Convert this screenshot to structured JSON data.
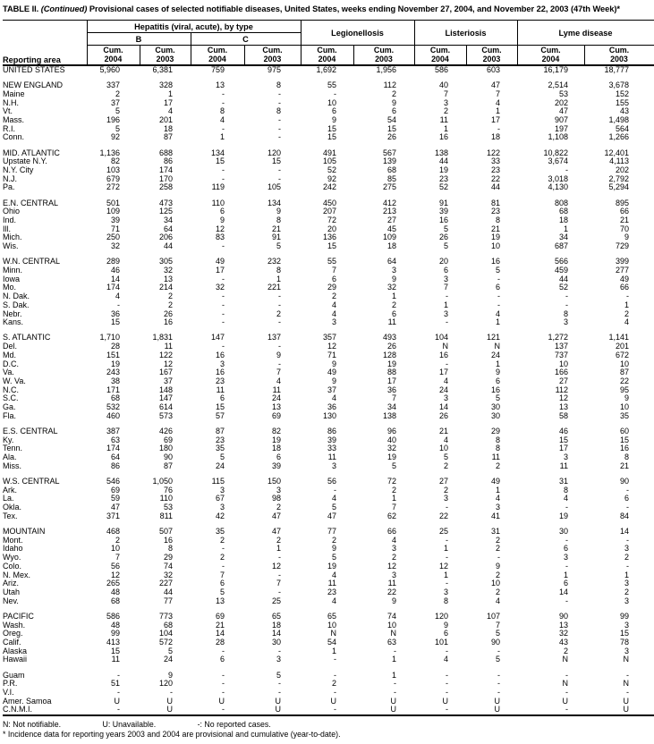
{
  "title": {
    "label": "TABLE II.",
    "continued": " (Continued)",
    "rest": " Provisional cases of selected notifiable diseases, United States, weeks ending November 27, 2004, and November 22, 2003 (47th Week)*"
  },
  "header": {
    "reporting_area": "Reporting area",
    "hepatitis_group": "Hepatitis (viral, acute), by type",
    "hepatitis_subgroups": [
      "B",
      "C"
    ],
    "disease_groups": [
      "Legionellosis",
      "Listeriosis",
      "Lyme disease"
    ],
    "column_label": "Cum.",
    "years": [
      "2004",
      "2003"
    ]
  },
  "sections": [
    {
      "rows": [
        [
          "UNITED STATES",
          "5,960",
          "6,381",
          "759",
          "975",
          "1,692",
          "1,956",
          "586",
          "603",
          "16,179",
          "18,777"
        ]
      ]
    },
    {
      "rows": [
        [
          "NEW ENGLAND",
          "337",
          "328",
          "13",
          "8",
          "55",
          "112",
          "40",
          "47",
          "2,514",
          "3,678"
        ],
        [
          "Maine",
          "2",
          "1",
          "-",
          "-",
          "-",
          "2",
          "7",
          "7",
          "53",
          "152"
        ],
        [
          "N.H.",
          "37",
          "17",
          "-",
          "-",
          "10",
          "9",
          "3",
          "4",
          "202",
          "155"
        ],
        [
          "Vt.",
          "5",
          "4",
          "8",
          "8",
          "6",
          "6",
          "2",
          "1",
          "47",
          "43"
        ],
        [
          "Mass.",
          "196",
          "201",
          "4",
          "-",
          "9",
          "54",
          "11",
          "17",
          "907",
          "1,498"
        ],
        [
          "R.I.",
          "5",
          "18",
          "-",
          "-",
          "15",
          "15",
          "1",
          "-",
          "197",
          "564"
        ],
        [
          "Conn.",
          "92",
          "87",
          "1",
          "-",
          "15",
          "26",
          "16",
          "18",
          "1,108",
          "1,266"
        ]
      ]
    },
    {
      "rows": [
        [
          "MID. ATLANTIC",
          "1,136",
          "688",
          "134",
          "120",
          "491",
          "567",
          "138",
          "122",
          "10,822",
          "12,401"
        ],
        [
          "Upstate N.Y.",
          "82",
          "86",
          "15",
          "15",
          "105",
          "139",
          "44",
          "33",
          "3,674",
          "4,113"
        ],
        [
          "N.Y. City",
          "103",
          "174",
          "-",
          "-",
          "52",
          "68",
          "19",
          "23",
          "-",
          "202"
        ],
        [
          "N.J.",
          "679",
          "170",
          "-",
          "-",
          "92",
          "85",
          "23",
          "22",
          "3,018",
          "2,792"
        ],
        [
          "Pa.",
          "272",
          "258",
          "119",
          "105",
          "242",
          "275",
          "52",
          "44",
          "4,130",
          "5,294"
        ]
      ]
    },
    {
      "rows": [
        [
          "E.N. CENTRAL",
          "501",
          "473",
          "110",
          "134",
          "450",
          "412",
          "91",
          "81",
          "808",
          "895"
        ],
        [
          "Ohio",
          "109",
          "125",
          "6",
          "9",
          "207",
          "213",
          "39",
          "23",
          "68",
          "66"
        ],
        [
          "Ind.",
          "39",
          "34",
          "9",
          "8",
          "72",
          "27",
          "16",
          "8",
          "18",
          "21"
        ],
        [
          "Ill.",
          "71",
          "64",
          "12",
          "21",
          "20",
          "45",
          "5",
          "21",
          "1",
          "70"
        ],
        [
          "Mich.",
          "250",
          "206",
          "83",
          "91",
          "136",
          "109",
          "26",
          "19",
          "34",
          "9"
        ],
        [
          "Wis.",
          "32",
          "44",
          "-",
          "5",
          "15",
          "18",
          "5",
          "10",
          "687",
          "729"
        ]
      ]
    },
    {
      "rows": [
        [
          "W.N. CENTRAL",
          "289",
          "305",
          "49",
          "232",
          "55",
          "64",
          "20",
          "16",
          "566",
          "399"
        ],
        [
          "Minn.",
          "46",
          "32",
          "17",
          "8",
          "7",
          "3",
          "6",
          "5",
          "459",
          "277"
        ],
        [
          "Iowa",
          "14",
          "13",
          "-",
          "1",
          "6",
          "9",
          "3",
          "-",
          "44",
          "49"
        ],
        [
          "Mo.",
          "174",
          "214",
          "32",
          "221",
          "29",
          "32",
          "7",
          "6",
          "52",
          "66"
        ],
        [
          "N. Dak.",
          "4",
          "2",
          "-",
          "-",
          "2",
          "1",
          "-",
          "-",
          "-",
          "-"
        ],
        [
          "S. Dak.",
          "-",
          "2",
          "-",
          "-",
          "4",
          "2",
          "1",
          "-",
          "-",
          "1"
        ],
        [
          "Nebr.",
          "36",
          "26",
          "-",
          "2",
          "4",
          "6",
          "3",
          "4",
          "8",
          "2"
        ],
        [
          "Kans.",
          "15",
          "16",
          "-",
          "-",
          "3",
          "11",
          "-",
          "1",
          "3",
          "4"
        ]
      ]
    },
    {
      "rows": [
        [
          "S. ATLANTIC",
          "1,710",
          "1,831",
          "147",
          "137",
          "357",
          "493",
          "104",
          "121",
          "1,272",
          "1,141"
        ],
        [
          "Del.",
          "28",
          "11",
          "-",
          "-",
          "12",
          "26",
          "N",
          "N",
          "137",
          "201"
        ],
        [
          "Md.",
          "151",
          "122",
          "16",
          "9",
          "71",
          "128",
          "16",
          "24",
          "737",
          "672"
        ],
        [
          "D.C.",
          "19",
          "12",
          "3",
          "-",
          "9",
          "19",
          "-",
          "1",
          "10",
          "10"
        ],
        [
          "Va.",
          "243",
          "167",
          "16",
          "7",
          "49",
          "88",
          "17",
          "9",
          "166",
          "87"
        ],
        [
          "W. Va.",
          "38",
          "37",
          "23",
          "4",
          "9",
          "17",
          "4",
          "6",
          "27",
          "22"
        ],
        [
          "N.C.",
          "171",
          "148",
          "11",
          "11",
          "37",
          "36",
          "24",
          "16",
          "112",
          "95"
        ],
        [
          "S.C.",
          "68",
          "147",
          "6",
          "24",
          "4",
          "7",
          "3",
          "5",
          "12",
          "9"
        ],
        [
          "Ga.",
          "532",
          "614",
          "15",
          "13",
          "36",
          "34",
          "14",
          "30",
          "13",
          "10"
        ],
        [
          "Fla.",
          "460",
          "573",
          "57",
          "69",
          "130",
          "138",
          "26",
          "30",
          "58",
          "35"
        ]
      ]
    },
    {
      "rows": [
        [
          "E.S. CENTRAL",
          "387",
          "426",
          "87",
          "82",
          "86",
          "96",
          "21",
          "29",
          "46",
          "60"
        ],
        [
          "Ky.",
          "63",
          "69",
          "23",
          "19",
          "39",
          "40",
          "4",
          "8",
          "15",
          "15"
        ],
        [
          "Tenn.",
          "174",
          "180",
          "35",
          "18",
          "33",
          "32",
          "10",
          "8",
          "17",
          "16"
        ],
        [
          "Ala.",
          "64",
          "90",
          "5",
          "6",
          "11",
          "19",
          "5",
          "11",
          "3",
          "8"
        ],
        [
          "Miss.",
          "86",
          "87",
          "24",
          "39",
          "3",
          "5",
          "2",
          "2",
          "11",
          "21"
        ]
      ]
    },
    {
      "rows": [
        [
          "W.S. CENTRAL",
          "546",
          "1,050",
          "115",
          "150",
          "56",
          "72",
          "27",
          "49",
          "31",
          "90"
        ],
        [
          "Ark.",
          "69",
          "76",
          "3",
          "3",
          "-",
          "2",
          "2",
          "1",
          "8",
          "-"
        ],
        [
          "La.",
          "59",
          "110",
          "67",
          "98",
          "4",
          "1",
          "3",
          "4",
          "4",
          "6"
        ],
        [
          "Okla.",
          "47",
          "53",
          "3",
          "2",
          "5",
          "7",
          "-",
          "3",
          "-",
          "-"
        ],
        [
          "Tex.",
          "371",
          "811",
          "42",
          "47",
          "47",
          "62",
          "22",
          "41",
          "19",
          "84"
        ]
      ]
    },
    {
      "rows": [
        [
          "MOUNTAIN",
          "468",
          "507",
          "35",
          "47",
          "77",
          "66",
          "25",
          "31",
          "30",
          "14"
        ],
        [
          "Mont.",
          "2",
          "16",
          "2",
          "2",
          "2",
          "4",
          "-",
          "2",
          "-",
          "-"
        ],
        [
          "Idaho",
          "10",
          "8",
          "-",
          "1",
          "9",
          "3",
          "1",
          "2",
          "6",
          "3"
        ],
        [
          "Wyo.",
          "7",
          "29",
          "2",
          "-",
          "5",
          "2",
          "-",
          "-",
          "3",
          "2"
        ],
        [
          "Colo.",
          "56",
          "74",
          "-",
          "12",
          "19",
          "12",
          "12",
          "9",
          "-",
          "-"
        ],
        [
          "N. Mex.",
          "12",
          "32",
          "7",
          "-",
          "4",
          "3",
          "1",
          "2",
          "1",
          "1"
        ],
        [
          "Ariz.",
          "265",
          "227",
          "6",
          "7",
          "11",
          "11",
          "-",
          "10",
          "6",
          "3"
        ],
        [
          "Utah",
          "48",
          "44",
          "5",
          "-",
          "23",
          "22",
          "3",
          "2",
          "14",
          "2"
        ],
        [
          "Nev.",
          "68",
          "77",
          "13",
          "25",
          "4",
          "9",
          "8",
          "4",
          "-",
          "3"
        ]
      ]
    },
    {
      "rows": [
        [
          "PACIFIC",
          "586",
          "773",
          "69",
          "65",
          "65",
          "74",
          "120",
          "107",
          "90",
          "99"
        ],
        [
          "Wash.",
          "48",
          "68",
          "21",
          "18",
          "10",
          "10",
          "9",
          "7",
          "13",
          "3"
        ],
        [
          "Oreg.",
          "99",
          "104",
          "14",
          "14",
          "N",
          "N",
          "6",
          "5",
          "32",
          "15"
        ],
        [
          "Calif.",
          "413",
          "572",
          "28",
          "30",
          "54",
          "63",
          "101",
          "90",
          "43",
          "78"
        ],
        [
          "Alaska",
          "15",
          "5",
          "-",
          "-",
          "1",
          "-",
          "-",
          "-",
          "2",
          "3"
        ],
        [
          "Hawaii",
          "11",
          "24",
          "6",
          "3",
          "-",
          "1",
          "4",
          "5",
          "N",
          "N"
        ]
      ]
    },
    {
      "rows": [
        [
          "Guam",
          "-",
          "9",
          "-",
          "5",
          "-",
          "1",
          "-",
          "-",
          "-",
          "-"
        ],
        [
          "P.R.",
          "51",
          "120",
          "-",
          "-",
          "2",
          "-",
          "-",
          "-",
          "N",
          "N"
        ],
        [
          "V.I.",
          "-",
          "-",
          "-",
          "-",
          "-",
          "-",
          "-",
          "-",
          "-",
          "-"
        ],
        [
          "Amer. Samoa",
          "U",
          "U",
          "U",
          "U",
          "U",
          "U",
          "U",
          "U",
          "U",
          "U"
        ],
        [
          "C.N.M.I.",
          "-",
          "U",
          "-",
          "U",
          "-",
          "U",
          "-",
          "U",
          "-",
          "U"
        ]
      ]
    }
  ],
  "footnotes": {
    "not_notifiable": "N: Not notifiable.",
    "unavailable": "U: Unavailable.",
    "no_reported": "-: No reported cases.",
    "incidence": "* Incidence data for reporting years 2003 and 2004 are provisional and cumulative (year-to-date)."
  }
}
